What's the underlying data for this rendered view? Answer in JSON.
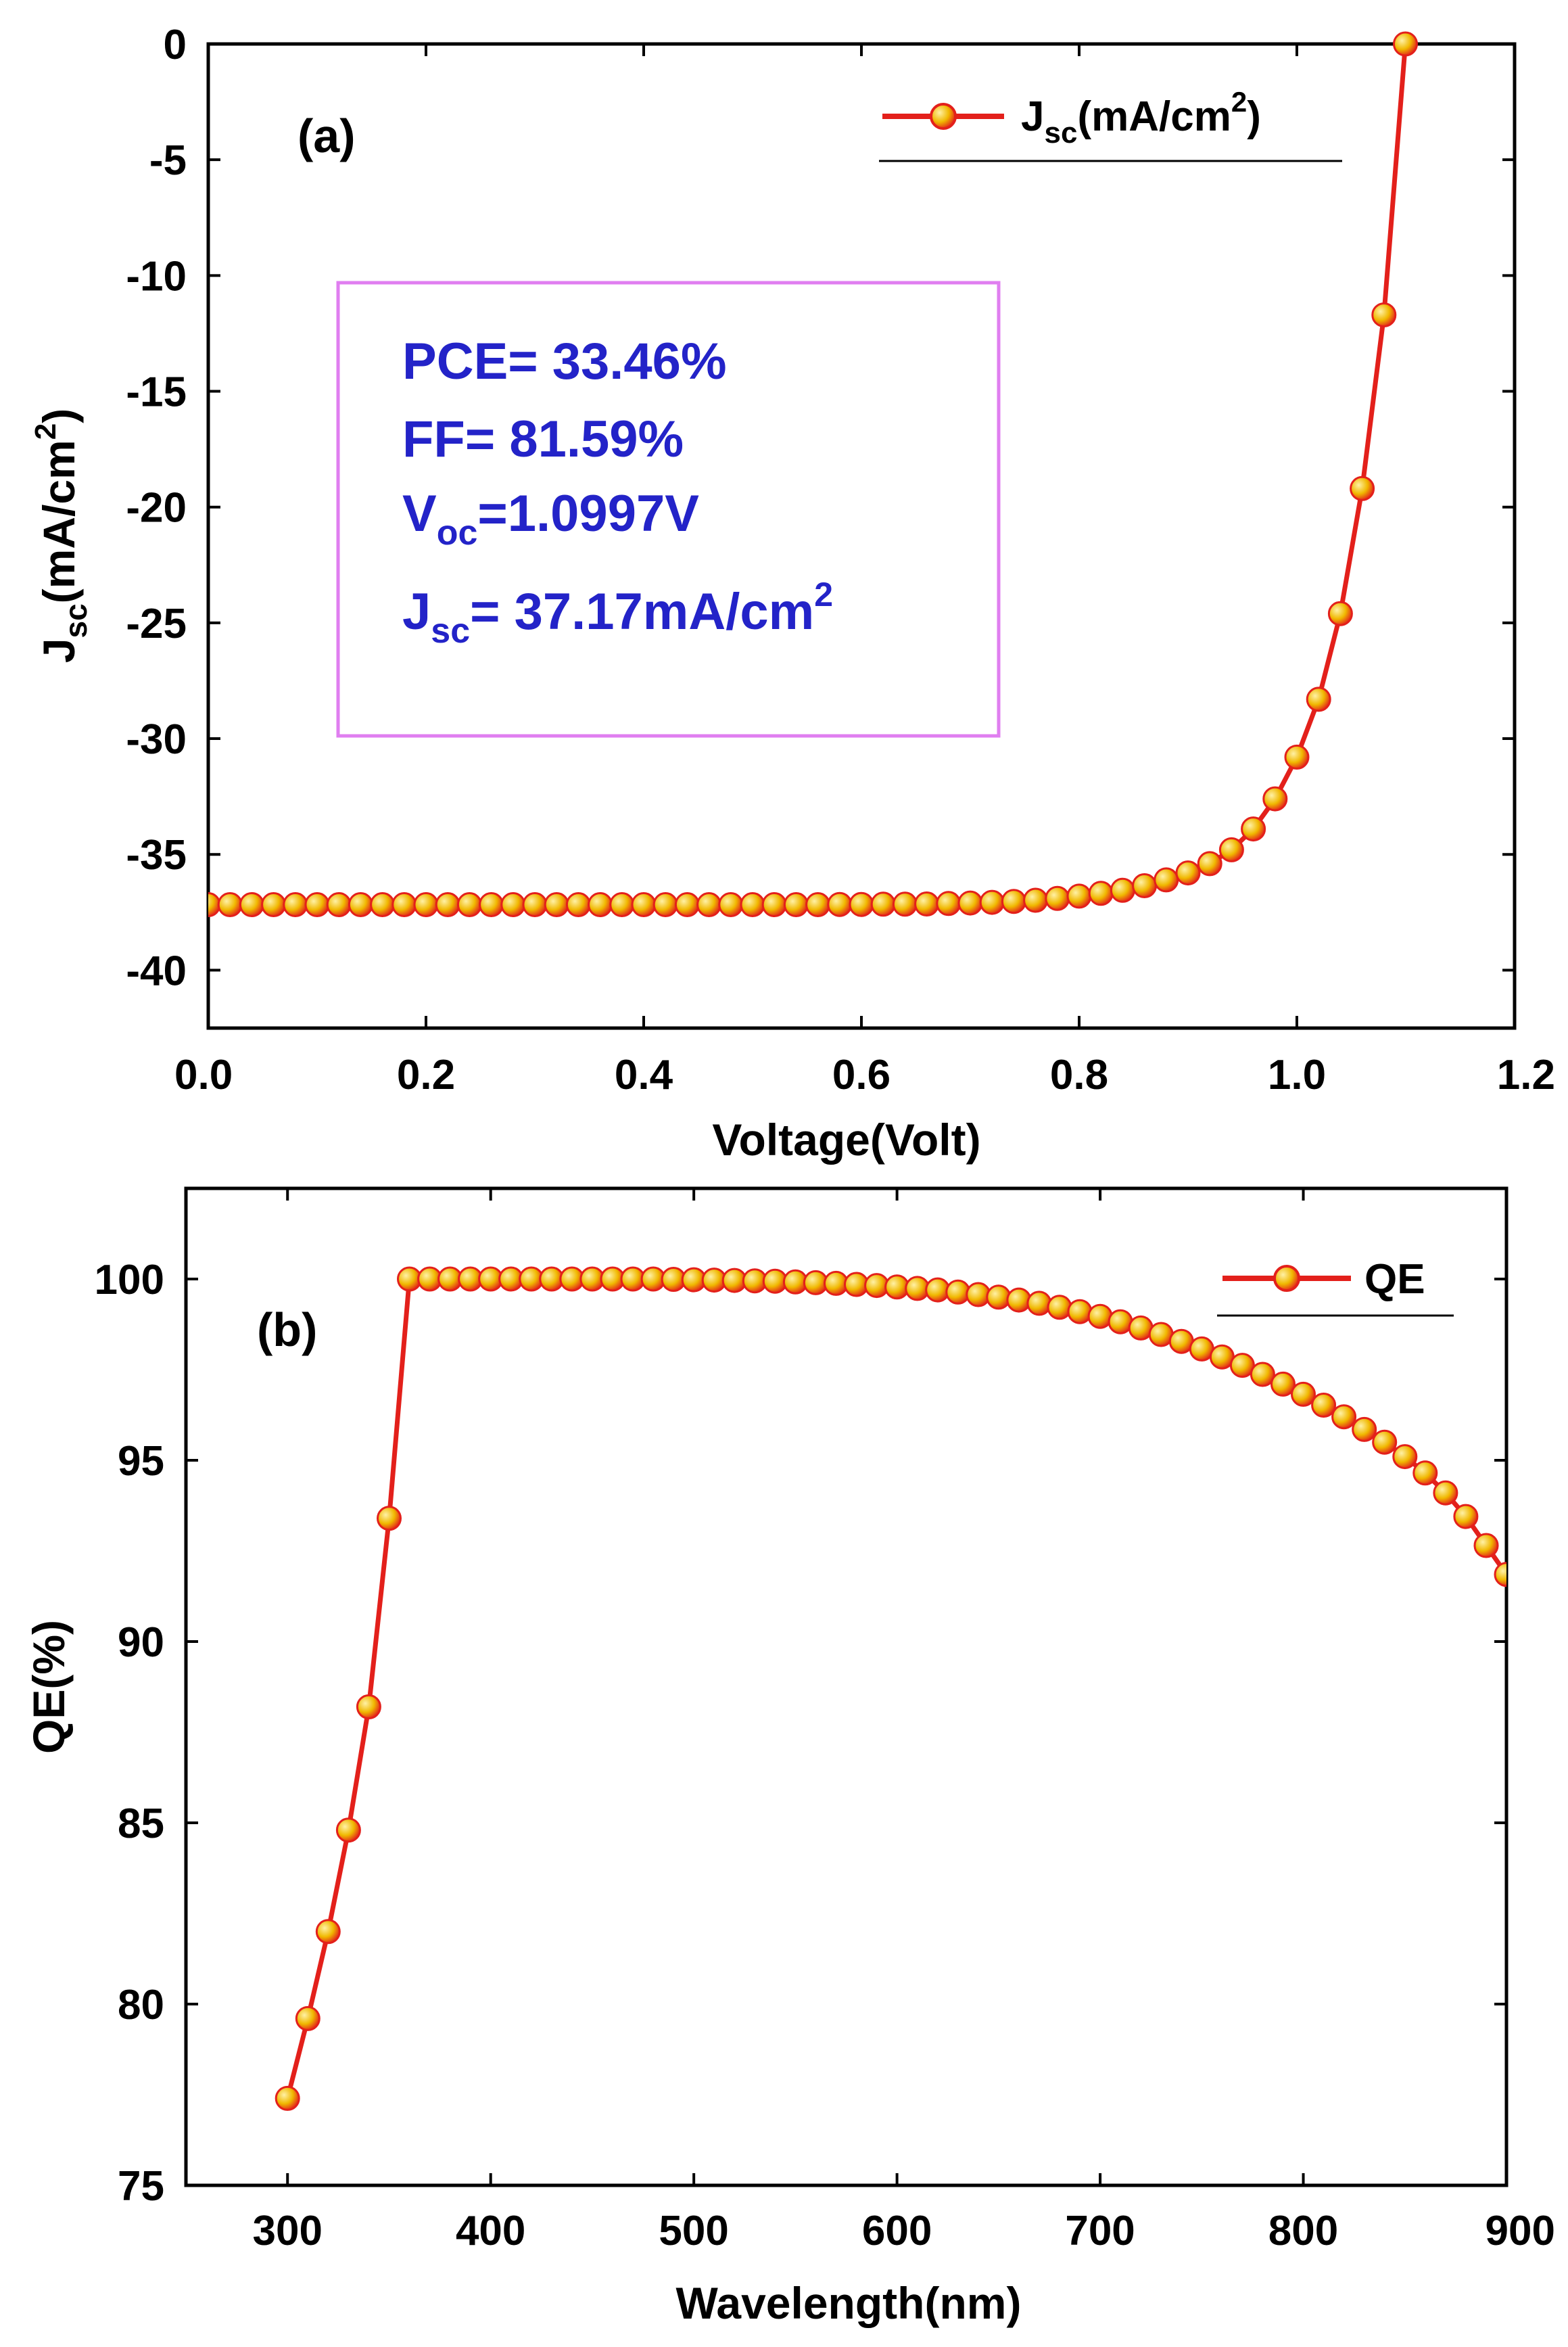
{
  "colors": {
    "series_line": "#e3201b",
    "marker_fill": "#f0b800",
    "marker_edge": "#e3201b",
    "info_text": "#2323c8",
    "info_box_border": "#e07ef0"
  },
  "chart_data": [
    {
      "type": "line",
      "panel_tag": "(a)",
      "title": "",
      "xlabel": "Voltage(Volt)",
      "ylabel": "Jsc(mA/cm2)",
      "ylabel_parts": {
        "base": "J",
        "sub": "sc",
        "mid": "(mA/cm",
        "sup": "2",
        "end": ")"
      },
      "xlim": [
        0.0,
        1.2
      ],
      "ylim": [
        -42.5,
        0
      ],
      "x_ticks": [
        0.0,
        0.2,
        0.4,
        0.6,
        0.8,
        1.0,
        1.2
      ],
      "x_tick_labels": [
        "0.0",
        "0.2",
        "0.4",
        "0.6",
        "0.8",
        "1.0",
        "1.2"
      ],
      "y_ticks": [
        0,
        -5,
        -10,
        -15,
        -20,
        -25,
        -30,
        -35,
        -40
      ],
      "y_tick_labels": [
        "0",
        "-5",
        "-10",
        "-15",
        "-20",
        "-25",
        "-30",
        "-35",
        "-40"
      ],
      "grid": false,
      "legend": {
        "position": "top-right",
        "entries": [
          {
            "base": "J",
            "sub": "sc",
            "mid": "(mA/cm",
            "sup": "2",
            "end": ")"
          }
        ]
      },
      "info_box": {
        "pce": "PCE= 33.46%",
        "ff": "FF= 81.59%",
        "voc": {
          "base": "V",
          "sub": "oc",
          "rest": "=1.0997V"
        },
        "jsc": {
          "base": "J",
          "sub": "sc",
          "rest": "= 37.17mA/cm",
          "sup": "2"
        }
      },
      "series": [
        {
          "name": "Jsc(mA/cm2)",
          "x": [
            0.0,
            0.02,
            0.04,
            0.06,
            0.08,
            0.1,
            0.12,
            0.14,
            0.16,
            0.18,
            0.2,
            0.22,
            0.24,
            0.26,
            0.28,
            0.3,
            0.32,
            0.34,
            0.36,
            0.38,
            0.4,
            0.42,
            0.44,
            0.46,
            0.48,
            0.5,
            0.52,
            0.54,
            0.56,
            0.58,
            0.6,
            0.62,
            0.64,
            0.66,
            0.68,
            0.7,
            0.72,
            0.74,
            0.76,
            0.78,
            0.8,
            0.82,
            0.84,
            0.86,
            0.88,
            0.9,
            0.92,
            0.94,
            0.96,
            0.98,
            1.0,
            1.02,
            1.04,
            1.06,
            1.08,
            1.0997
          ],
          "values": [
            -37.17,
            -37.17,
            -37.17,
            -37.17,
            -37.17,
            -37.17,
            -37.17,
            -37.17,
            -37.17,
            -37.17,
            -37.17,
            -37.17,
            -37.17,
            -37.17,
            -37.17,
            -37.17,
            -37.17,
            -37.17,
            -37.17,
            -37.17,
            -37.17,
            -37.17,
            -37.17,
            -37.17,
            -37.17,
            -37.17,
            -37.17,
            -37.17,
            -37.17,
            -37.16,
            -37.16,
            -37.15,
            -37.15,
            -37.14,
            -37.12,
            -37.1,
            -37.07,
            -37.03,
            -36.98,
            -36.9,
            -36.8,
            -36.68,
            -36.55,
            -36.35,
            -36.1,
            -35.8,
            -35.4,
            -34.8,
            -33.9,
            -32.6,
            -30.8,
            -28.3,
            -24.6,
            -19.2,
            -11.7,
            0.0
          ]
        }
      ]
    },
    {
      "type": "line",
      "panel_tag": "(b)",
      "title": "",
      "xlabel": "Wavelength(nm)",
      "ylabel": "QE(%)",
      "xlim": [
        250,
        900
      ],
      "ylim": [
        75,
        102.5
      ],
      "x_ticks": [
        300,
        400,
        500,
        600,
        700,
        800,
        900
      ],
      "x_tick_labels": [
        "300",
        "400",
        "500",
        "600",
        "700",
        "800",
        "900"
      ],
      "y_ticks": [
        75,
        80,
        85,
        90,
        95,
        100
      ],
      "y_tick_labels": [
        "75",
        "80",
        "85",
        "90",
        "95",
        "100"
      ],
      "grid": false,
      "legend": {
        "position": "top-right",
        "entries": [
          "QE"
        ]
      },
      "series": [
        {
          "name": "QE",
          "x": [
            300,
            310,
            320,
            330,
            340,
            350,
            360,
            370,
            380,
            390,
            400,
            410,
            420,
            430,
            440,
            450,
            460,
            470,
            480,
            490,
            500,
            510,
            520,
            530,
            540,
            550,
            560,
            570,
            580,
            590,
            600,
            610,
            620,
            630,
            640,
            650,
            660,
            670,
            680,
            690,
            700,
            710,
            720,
            730,
            740,
            750,
            760,
            770,
            780,
            790,
            800,
            810,
            820,
            830,
            840,
            850,
            860,
            870,
            880,
            890,
            900
          ],
          "values": [
            77.4,
            79.6,
            82.0,
            84.8,
            88.2,
            93.4,
            100.0,
            100.0,
            100.0,
            100.0,
            100.0,
            100.0,
            100.0,
            100.0,
            100.0,
            100.0,
            100.0,
            100.0,
            100.0,
            99.99,
            99.98,
            99.97,
            99.96,
            99.95,
            99.94,
            99.92,
            99.9,
            99.88,
            99.85,
            99.82,
            99.78,
            99.74,
            99.7,
            99.64,
            99.57,
            99.5,
            99.42,
            99.33,
            99.22,
            99.1,
            98.97,
            98.82,
            98.65,
            98.47,
            98.28,
            98.07,
            97.85,
            97.62,
            97.37,
            97.1,
            96.82,
            96.52,
            96.2,
            95.85,
            95.5,
            95.1,
            94.65,
            94.1,
            93.45,
            92.65,
            91.85
          ]
        }
      ]
    }
  ]
}
